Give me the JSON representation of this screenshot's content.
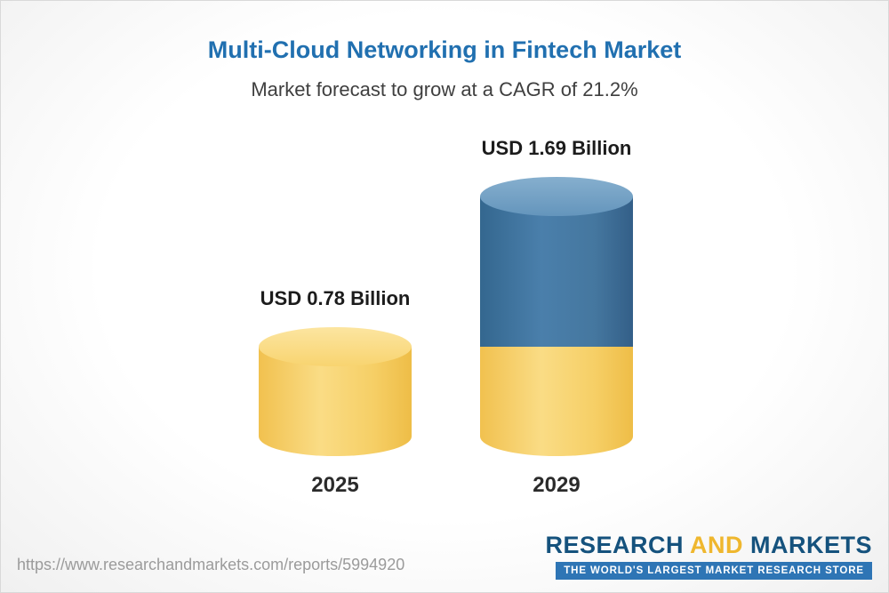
{
  "header": {
    "title": "Multi-Cloud Networking in Fintech Market",
    "subtitle": "Market forecast to grow at a CAGR of 21.2%"
  },
  "chart_data": {
    "type": "bar",
    "variant": "3d-cylinder",
    "title": "Multi-Cloud Networking in Fintech Market",
    "subtitle": "Market forecast to grow at a CAGR of 21.2%",
    "categories": [
      "2025",
      "2029"
    ],
    "values": [
      0.78,
      1.69
    ],
    "value_labels": [
      "USD 0.78 Billion",
      "USD 1.69 Billion"
    ],
    "unit": "USD Billion",
    "cagr_percent": 21.2,
    "legend": "none",
    "grid": false,
    "series_colors": {
      "base_yellow": "#f6cd61",
      "growth_blue": "#3d6f9d"
    }
  },
  "footer": {
    "url": "https://www.researchandmarkets.com/reports/5994920",
    "logo_research": "RESEARCH",
    "logo_and": "AND",
    "logo_markets": "MARKETS",
    "tagline": "THE WORLD'S LARGEST MARKET RESEARCH STORE"
  }
}
